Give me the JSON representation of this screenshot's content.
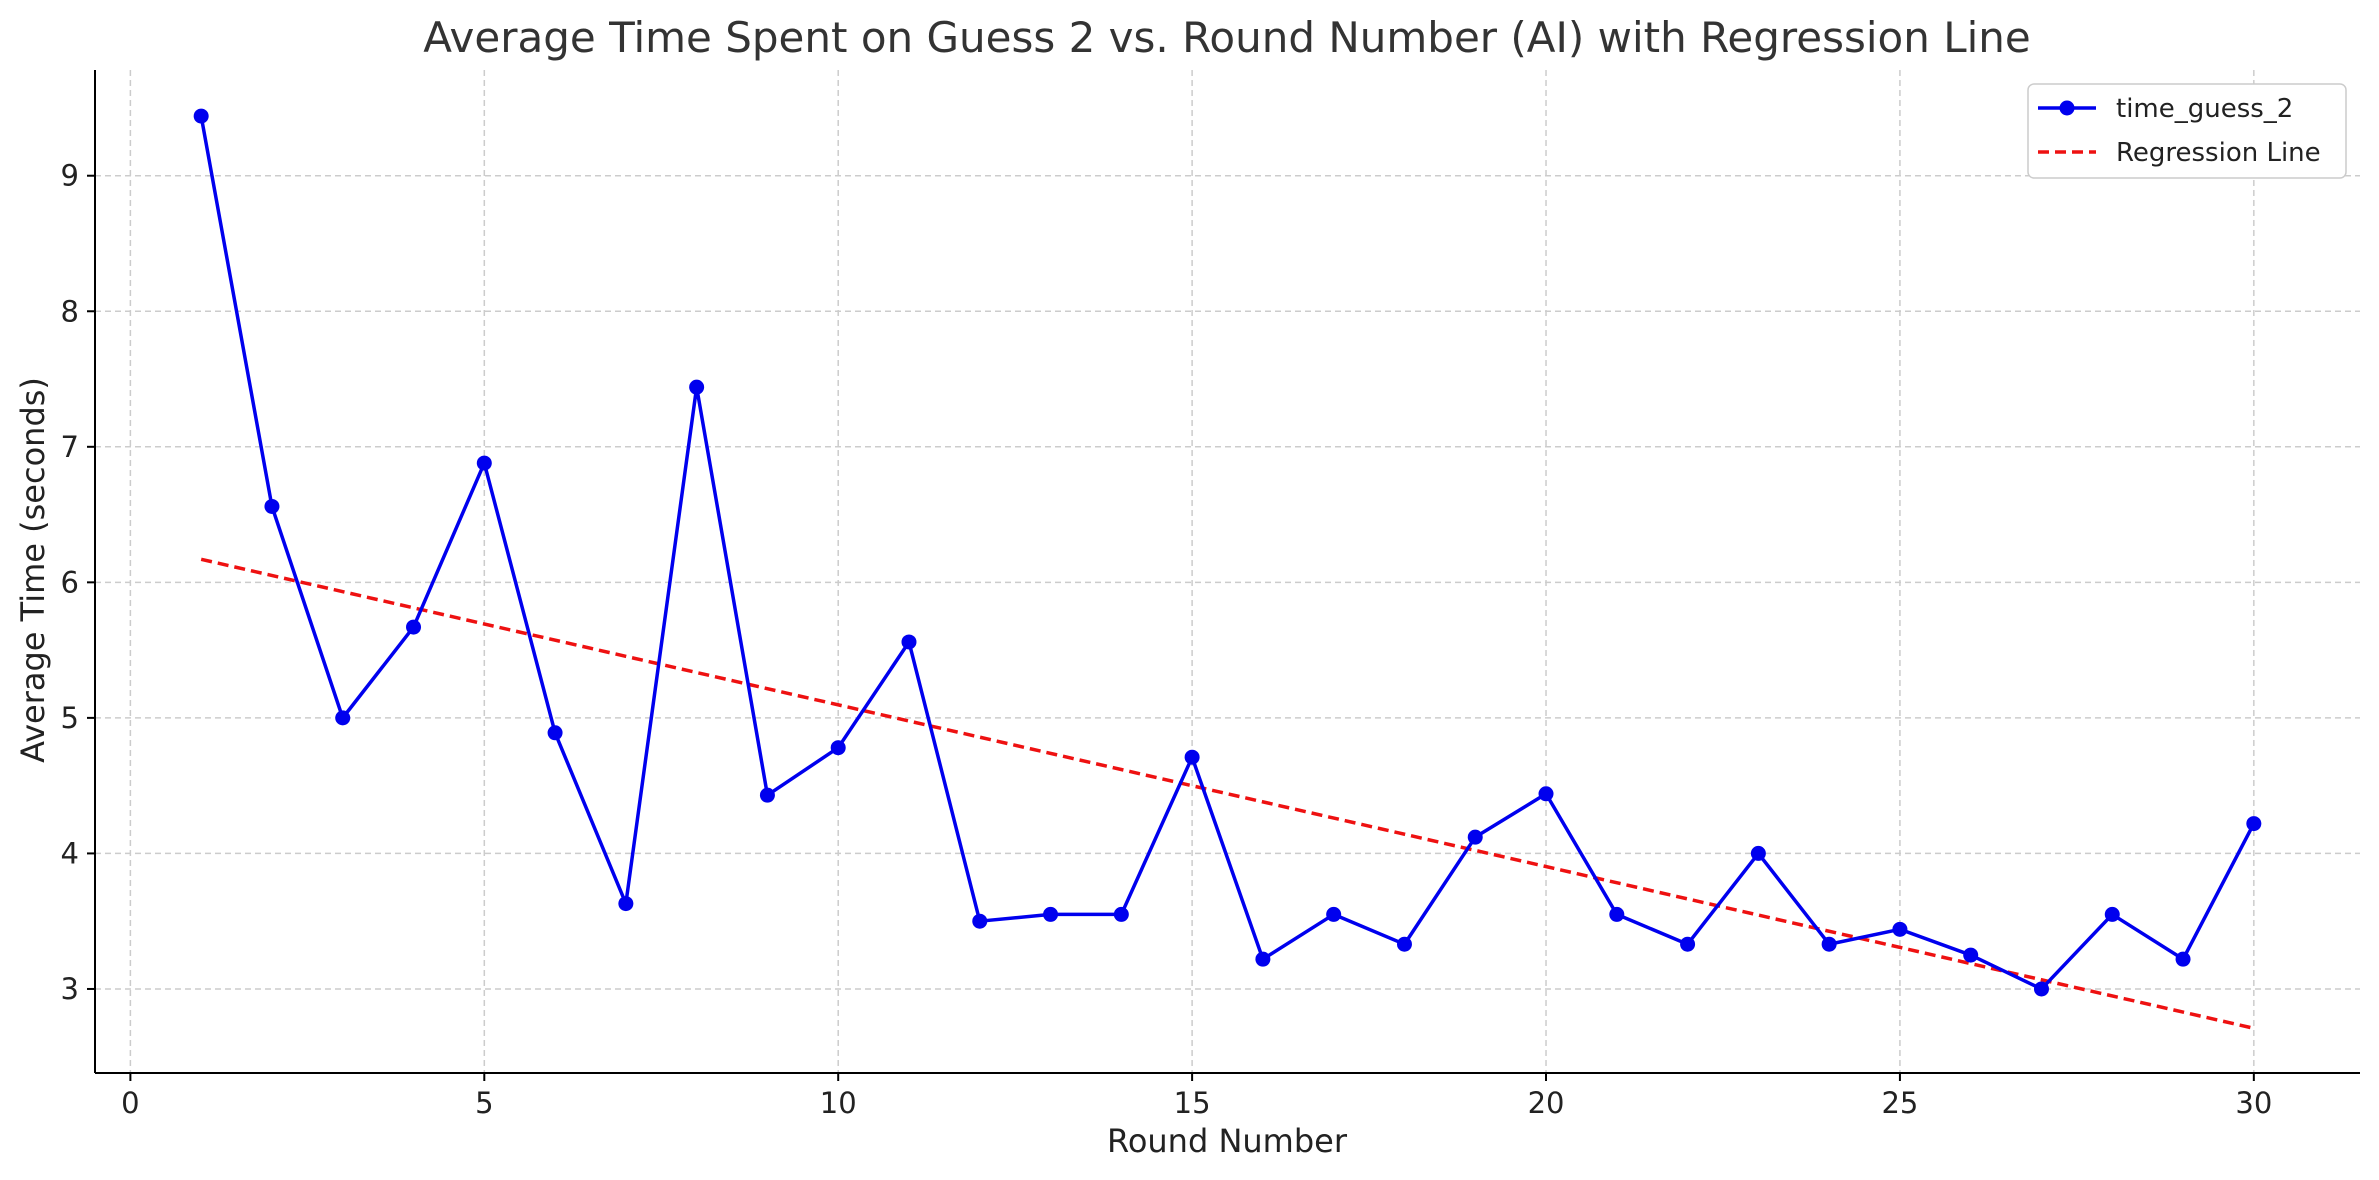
{
  "chart_data": {
    "type": "line",
    "title": "Average Time Spent on Guess 2 vs. Round Number (AI) with Regression Line",
    "xlabel": "Round Number",
    "ylabel": "Average Time (seconds)",
    "xlim": [
      -0.5,
      31.5
    ],
    "ylim": [
      2.38,
      9.78
    ],
    "xticks": [
      0,
      5,
      10,
      15,
      20,
      25,
      30
    ],
    "yticks": [
      3,
      4,
      5,
      6,
      7,
      8,
      9
    ],
    "grid": true,
    "legend_position": "top-right",
    "x": [
      1,
      2,
      3,
      4,
      5,
      6,
      7,
      8,
      9,
      10,
      11,
      12,
      13,
      14,
      15,
      16,
      17,
      18,
      19,
      20,
      21,
      22,
      23,
      24,
      25,
      26,
      27,
      28,
      29,
      30
    ],
    "series": [
      {
        "name": "time_guess_2",
        "style": "line-marker",
        "color": "#0000ee",
        "values": [
          9.44,
          6.56,
          5.0,
          5.67,
          6.88,
          4.89,
          3.63,
          7.44,
          4.43,
          4.78,
          5.56,
          3.5,
          3.55,
          3.55,
          4.71,
          3.22,
          3.55,
          3.33,
          4.12,
          4.44,
          3.55,
          3.33,
          4.0,
          3.33,
          3.44,
          3.25,
          3.0,
          3.55,
          3.22,
          4.22
        ]
      },
      {
        "name": "Regression Line",
        "style": "dashed",
        "color": "#ee1111",
        "x": [
          1,
          30
        ],
        "values": [
          6.17,
          2.71
        ]
      }
    ]
  }
}
